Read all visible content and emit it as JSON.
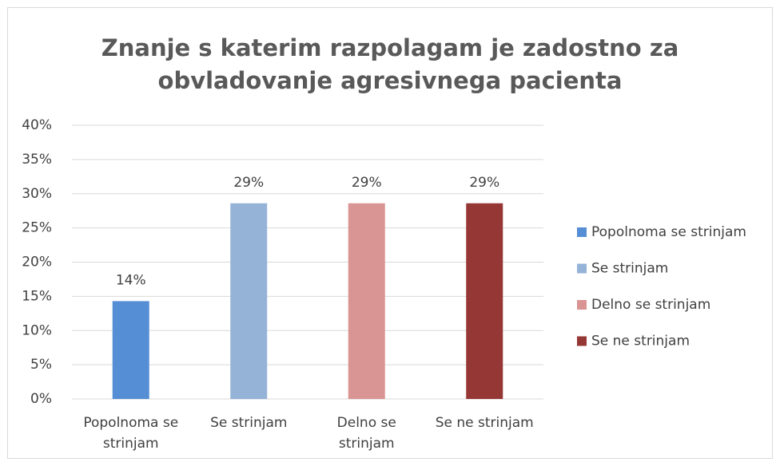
{
  "chart_data": {
    "type": "bar",
    "title": [
      "Znanje s katerim razpolagam je zadostno za",
      "obvladovanje agresivnega pacienta"
    ],
    "categories": [
      "Popolnoma se strinjam",
      "Se strinjam",
      "Delno se strinjam",
      "Se ne strinjam"
    ],
    "values": [
      14.3,
      28.6,
      28.6,
      28.6
    ],
    "value_labels": [
      "14%",
      "29%",
      "29%",
      "29%"
    ],
    "colors": [
      "#558ed5",
      "#95b3d7",
      "#d99594",
      "#953735"
    ],
    "ylim": [
      0,
      40
    ],
    "yticks": [
      {
        "value": 0,
        "label": "0%"
      },
      {
        "value": 5,
        "label": "5%"
      },
      {
        "value": 10,
        "label": "10%"
      },
      {
        "value": 15,
        "label": "15%"
      },
      {
        "value": 20,
        "label": "20%"
      },
      {
        "value": 25,
        "label": "25%"
      },
      {
        "value": 30,
        "label": "30%"
      },
      {
        "value": 35,
        "label": "35%"
      },
      {
        "value": 40,
        "label": "40%"
      }
    ],
    "grid": true,
    "legend": "right"
  }
}
